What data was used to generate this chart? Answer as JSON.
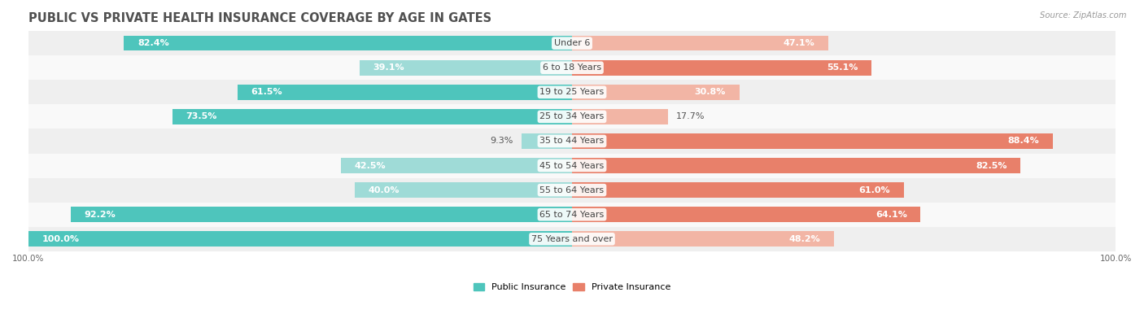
{
  "title": "PUBLIC VS PRIVATE HEALTH INSURANCE COVERAGE BY AGE IN GATES",
  "source": "Source: ZipAtlas.com",
  "categories": [
    "Under 6",
    "6 to 18 Years",
    "19 to 25 Years",
    "25 to 34 Years",
    "35 to 44 Years",
    "45 to 54 Years",
    "55 to 64 Years",
    "65 to 74 Years",
    "75 Years and over"
  ],
  "public_values": [
    82.4,
    39.1,
    61.5,
    73.5,
    9.3,
    42.5,
    40.0,
    92.2,
    100.0
  ],
  "private_values": [
    47.1,
    55.1,
    30.8,
    17.7,
    88.4,
    82.5,
    61.0,
    64.1,
    48.2
  ],
  "public_color": "#4EC5BC",
  "private_color": "#E8806A",
  "public_color_light": "#9FDBD7",
  "private_color_light": "#F2B5A5",
  "row_bg_light": "#EFEFEF",
  "row_bg_white": "#F9F9F9",
  "bar_height": 0.62,
  "max_value": 100.0,
  "legend_public": "Public Insurance",
  "legend_private": "Private Insurance",
  "title_fontsize": 10.5,
  "label_fontsize": 8.0,
  "tick_fontsize": 7.5,
  "category_fontsize": 8.0,
  "pub_inside_threshold": 25,
  "priv_inside_threshold": 25
}
